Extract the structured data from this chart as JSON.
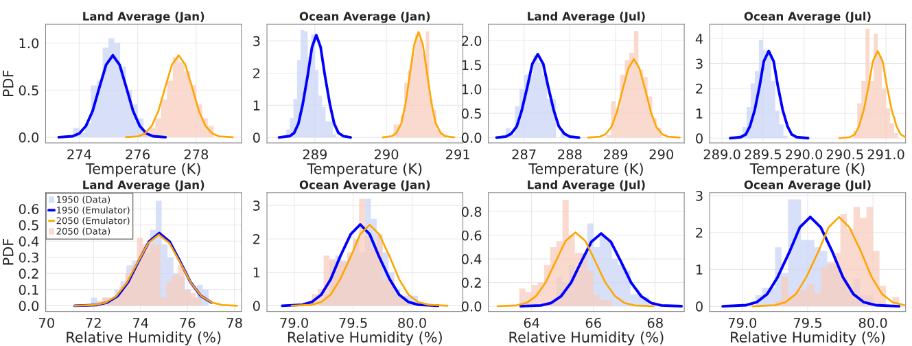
{
  "chart_data": [
    {
      "type": "histogram",
      "title": "Land Average (Jan)",
      "xlabel": "Temperature (K)",
      "ylabel": "PDF",
      "xlim": [
        272.85,
        279.55
      ],
      "xticks": [
        274,
        276,
        278
      ],
      "ylim": [
        -0.06,
        1.2
      ],
      "yticks": [
        {
          "value": 0,
          "label": "0.0"
        },
        {
          "value": 0.5,
          "label": "0.5"
        },
        {
          "value": 1,
          "label": "1.0"
        }
      ],
      "grid": true,
      "series": [
        {
          "type": "histogram",
          "color": "#c9d6f5",
          "bins": [
            273.8,
            274.0,
            274.2,
            274.4,
            274.6,
            274.8,
            275.0,
            275.2,
            275.4,
            275.6,
            275.8,
            276.0,
            276.2,
            276.4
          ],
          "values": [
            0.1,
            0.05,
            0.15,
            0.55,
            0.6,
            0.95,
            1.05,
            1.0,
            0.75,
            0.5,
            0.35,
            0.2,
            0.05
          ]
        },
        {
          "type": "line",
          "color": "#0000ff",
          "x": [
            273.3,
            273.77,
            274.0,
            274.23,
            274.46,
            274.69,
            274.92,
            275.15,
            275.38,
            275.61,
            275.84,
            276.07,
            276.3,
            276.53,
            276.95
          ],
          "values": [
            0,
            0.01,
            0.04,
            0.12,
            0.28,
            0.53,
            0.77,
            0.87,
            0.77,
            0.53,
            0.28,
            0.12,
            0.04,
            0.01,
            0
          ]
        },
        {
          "type": "line",
          "color": "#ffa500",
          "x": [
            275.6,
            276.02,
            276.25,
            276.48,
            276.71,
            276.94,
            277.17,
            277.4,
            277.63,
            277.86,
            278.09,
            278.32,
            278.55,
            278.78,
            279.25
          ],
          "values": [
            0,
            0.01,
            0.04,
            0.12,
            0.28,
            0.53,
            0.77,
            0.87,
            0.77,
            0.53,
            0.28,
            0.12,
            0.04,
            0.01,
            0
          ]
        },
        {
          "type": "histogram",
          "color": "#f8cdbd",
          "bins": [
            276.2,
            276.4,
            276.6,
            276.8,
            277.0,
            277.2,
            277.4,
            277.6,
            277.8,
            278.0,
            278.2,
            278.4,
            278.6
          ],
          "values": [
            0.05,
            0.1,
            0.2,
            0.4,
            0.6,
            0.85,
            0.8,
            0.7,
            0.55,
            0.35,
            0.2,
            0.12
          ]
        }
      ]
    },
    {
      "type": "histogram",
      "title": "Ocean Average (Jan)",
      "xlabel": "Temperature (K)",
      "xlim": [
        288.33,
        291.07
      ],
      "xticks": [
        289,
        290,
        291
      ],
      "ylim": [
        -0.17,
        3.52
      ],
      "yticks": [
        0,
        1,
        2,
        3
      ],
      "grid": true,
      "series": [
        {
          "type": "histogram",
          "color": "#c9d6f5",
          "bins": [
            288.6,
            288.65,
            288.7,
            288.75,
            288.8,
            288.85,
            288.9,
            288.95,
            289.0,
            289.05,
            289.1,
            289.15,
            289.2,
            289.25,
            289.3
          ],
          "values": [
            0.25,
            0.6,
            1.2,
            2.4,
            3.35,
            3.3,
            2.5,
            3.2,
            2.1,
            1.3,
            0.95,
            0.5,
            0.5,
            0.1
          ]
        },
        {
          "type": "line",
          "color": "#0000ff",
          "x": [
            288.5,
            288.65,
            288.71,
            288.77,
            288.83,
            288.9,
            288.96,
            289.02,
            289.08,
            289.14,
            289.21,
            289.27,
            289.33,
            289.4,
            289.5
          ],
          "values": [
            0,
            0.04,
            0.14,
            0.43,
            1.03,
            1.93,
            2.81,
            3.18,
            2.81,
            1.93,
            1.03,
            0.43,
            0.14,
            0.04,
            0
          ]
        },
        {
          "type": "line",
          "color": "#ffa500",
          "x": [
            289.95,
            290.08,
            290.14,
            290.21,
            290.27,
            290.33,
            290.39,
            290.45,
            290.51,
            290.57,
            290.63,
            290.69,
            290.76,
            290.82,
            290.95
          ],
          "values": [
            0,
            0.04,
            0.14,
            0.44,
            1.07,
            1.99,
            2.89,
            3.28,
            2.89,
            1.99,
            1.07,
            0.44,
            0.14,
            0.04,
            0
          ]
        },
        {
          "type": "histogram",
          "color": "#f8cdbd",
          "bins": [
            290.1,
            290.15,
            290.2,
            290.25,
            290.3,
            290.35,
            290.4,
            290.45,
            290.5,
            290.55,
            290.6,
            290.65,
            290.7,
            290.75,
            290.8,
            290.85
          ],
          "values": [
            0.4,
            0.4,
            0.7,
            1.7,
            2.1,
            2.6,
            3.2,
            3.05,
            2.6,
            3.3,
            1.2,
            0.85,
            0.25,
            0.15,
            0.1
          ]
        }
      ]
    },
    {
      "type": "histogram",
      "title": "Land Average (Jul)",
      "xlabel": "Temperature (K)",
      "xlim": [
        286.22,
        290.5
      ],
      "xticks": [
        287,
        288,
        289,
        290
      ],
      "ylim": [
        -0.11,
        2.34
      ],
      "yticks": [
        {
          "value": 0,
          "label": "0.0"
        },
        {
          "value": 0.5,
          "label": "0.5"
        },
        {
          "value": 1,
          "label": "1.0"
        },
        {
          "value": 1.5,
          "label": "1.5"
        },
        {
          "value": 2,
          "label": "2.0"
        }
      ],
      "grid": true,
      "series": [
        {
          "type": "histogram",
          "color": "#c9d6f5",
          "bins": [
            286.6,
            286.7,
            286.8,
            286.9,
            287.0,
            287.1,
            287.2,
            287.3,
            287.4,
            287.5,
            287.6,
            287.7,
            287.8,
            287.9,
            288.0
          ],
          "values": [
            0.2,
            0.05,
            0.65,
            1.0,
            1.3,
            1.3,
            1.7,
            1.55,
            1.3,
            0.8,
            0.8,
            0.0,
            0.1,
            0.0
          ]
        },
        {
          "type": "line",
          "color": "#0000ff",
          "x": [
            286.4,
            286.6,
            286.72,
            286.84,
            286.95,
            287.07,
            287.18,
            287.3,
            287.42,
            287.53,
            287.65,
            287.76,
            287.88,
            288.0,
            288.2
          ],
          "values": [
            0,
            0.02,
            0.08,
            0.23,
            0.56,
            1.04,
            1.52,
            1.72,
            1.52,
            1.04,
            0.56,
            0.23,
            0.08,
            0.02,
            0
          ]
        },
        {
          "type": "line",
          "color": "#ffa500",
          "x": [
            288.4,
            288.66,
            288.78,
            288.91,
            289.03,
            289.15,
            289.28,
            289.4,
            289.52,
            289.65,
            289.77,
            289.89,
            290.02,
            290.14,
            290.4
          ],
          "values": [
            0,
            0.02,
            0.07,
            0.22,
            0.53,
            0.98,
            1.43,
            1.62,
            1.43,
            0.98,
            0.53,
            0.22,
            0.07,
            0.02,
            0
          ]
        },
        {
          "type": "histogram",
          "color": "#f8cdbd",
          "bins": [
            288.8,
            288.9,
            289.0,
            289.1,
            289.2,
            289.3,
            289.4,
            289.5,
            289.6,
            289.7,
            289.8,
            289.9,
            290.0
          ],
          "values": [
            0.05,
            0.75,
            0.6,
            1.3,
            1.6,
            1.75,
            2.2,
            1.4,
            1.25,
            0.85,
            0.4,
            0.2
          ]
        }
      ]
    },
    {
      "type": "histogram",
      "title": "Ocean Average (Jul)",
      "xlabel": "Temperature (K)",
      "xlim": [
        288.85,
        291.24
      ],
      "xticks": [
        {
          "value": 289,
          "label": "289.0"
        },
        {
          "value": 289.5,
          "label": "289.5"
        },
        {
          "value": 290,
          "label": "290.0"
        },
        {
          "value": 290.5,
          "label": "290.5"
        },
        {
          "value": 291,
          "label": "291.0"
        }
      ],
      "ylim": [
        -0.19,
        4.58
      ],
      "yticks": [
        0,
        1,
        2,
        3,
        4
      ],
      "grid": true,
      "series": [
        {
          "type": "histogram",
          "color": "#c9d6f5",
          "bins": [
            289.2,
            289.25,
            289.3,
            289.35,
            289.4,
            289.45,
            289.5,
            289.55,
            289.6,
            289.65,
            289.7,
            289.75,
            289.8
          ],
          "values": [
            0.15,
            0.45,
            1.25,
            2.2,
            2.7,
            3.95,
            3.55,
            3.5,
            2.3,
            1.1,
            0.55,
            0.1
          ]
        },
        {
          "type": "line",
          "color": "#0000ff",
          "x": [
            289.1,
            289.23,
            289.29,
            289.34,
            289.4,
            289.46,
            289.51,
            289.57,
            289.63,
            289.68,
            289.74,
            289.8,
            289.85,
            289.91,
            290.05
          ],
          "values": [
            0,
            0.04,
            0.15,
            0.47,
            1.14,
            2.12,
            3.09,
            3.5,
            3.09,
            2.12,
            1.14,
            0.47,
            0.15,
            0.04,
            0
          ]
        },
        {
          "type": "line",
          "color": "#ffa500",
          "x": [
            290.43,
            290.56,
            290.62,
            290.67,
            290.73,
            290.79,
            290.84,
            290.9,
            290.96,
            291.01,
            291.07,
            291.13,
            291.18,
            291.24
          ],
          "values": [
            0,
            0.04,
            0.15,
            0.47,
            1.14,
            2.12,
            3.09,
            3.5,
            3.09,
            2.12,
            1.14,
            0.47,
            0.15,
            0.04
          ]
        },
        {
          "type": "histogram",
          "color": "#f8cdbd",
          "bins": [
            290.6,
            290.65,
            290.7,
            290.75,
            290.8,
            290.85,
            290.9,
            290.95,
            291.0,
            291.05,
            291.1,
            291.15
          ],
          "values": [
            0.3,
            1.4,
            2.3,
            4.4,
            2.3,
            4.2,
            3.3,
            2.0,
            1.2,
            0.6,
            0.2
          ]
        }
      ]
    },
    {
      "type": "histogram",
      "title": "Land Average (Jan)",
      "xlabel": "Relative Humidity (%)",
      "ylabel": "PDF",
      "xlim": [
        69.96,
        78.3
      ],
      "xticks": [
        70,
        72,
        74,
        76,
        78
      ],
      "ylim": [
        -0.035,
        0.7
      ],
      "yticks": [
        {
          "value": 0,
          "label": "0.0"
        },
        {
          "value": 0.1,
          "label": "0.1"
        },
        {
          "value": 0.2,
          "label": "0.2"
        },
        {
          "value": 0.3,
          "label": "0.3"
        },
        {
          "value": 0.4,
          "label": "0.4"
        },
        {
          "value": 0.5,
          "label": "0.5"
        },
        {
          "value": 0.6,
          "label": "0.6"
        }
      ],
      "grid": true,
      "legend": "top left",
      "series": [
        {
          "type": "histogram",
          "name": "1950 (Data)",
          "color": "#c9d6f5",
          "bins": [
            71.9,
            72.15,
            72.4,
            72.65,
            72.9,
            73.15,
            73.4,
            73.65,
            73.9,
            74.15,
            74.4,
            74.65,
            74.9,
            75.15,
            75.4,
            75.65,
            75.9,
            76.15,
            76.4,
            76.65,
            76.9
          ],
          "values": [
            0.05,
            0.02,
            0.05,
            0.05,
            0.1,
            0.15,
            0.25,
            0.28,
            0.3,
            0.33,
            0.47,
            0.65,
            0.38,
            0.3,
            0.2,
            0.18,
            0.1,
            0.05,
            0.13,
            0.1
          ]
        },
        {
          "type": "line",
          "name": "1950 (Emulator)",
          "color": "#0000ff",
          "x": [
            71.2,
            72.14,
            72.58,
            73.03,
            73.47,
            73.91,
            74.36,
            74.8,
            75.24,
            75.69,
            76.13,
            76.57,
            77.02
          ],
          "values": [
            0,
            0.005,
            0.02,
            0.061,
            0.146,
            0.273,
            0.397,
            0.45,
            0.397,
            0.273,
            0.146,
            0.061,
            0.02
          ]
        },
        {
          "type": "line",
          "name": "2050 (Emulator)",
          "color": "#ffa500",
          "x": [
            71.2,
            72.06,
            72.51,
            72.97,
            73.42,
            73.87,
            74.33,
            74.78,
            75.23,
            75.69,
            76.14,
            76.59,
            77.05,
            77.5,
            78.1
          ],
          "values": [
            0,
            0.005,
            0.019,
            0.06,
            0.143,
            0.267,
            0.388,
            0.44,
            0.388,
            0.267,
            0.143,
            0.06,
            0.019,
            0.005,
            0
          ]
        },
        {
          "type": "histogram",
          "name": "2050 (Data)",
          "color": "#f8cdbd",
          "bins": [
            72.1,
            72.35,
            72.6,
            72.85,
            73.1,
            73.35,
            73.6,
            73.85,
            74.1,
            74.35,
            74.6,
            74.85,
            75.1,
            75.35,
            75.6,
            75.85,
            76.1,
            76.35,
            76.6
          ],
          "values": [
            0.03,
            0.05,
            0.04,
            0.05,
            0.12,
            0.2,
            0.25,
            0.42,
            0.38,
            0.38,
            0.38,
            0.05,
            0.15,
            0.19,
            0.25,
            0.1,
            0.08,
            0.05
          ]
        }
      ]
    },
    {
      "type": "histogram",
      "title": "Ocean Average (Jan)",
      "xlabel": "Relative Humidity (%)",
      "xlim": [
        78.77,
        80.43
      ],
      "xticks": [
        {
          "value": 79,
          "label": "79.0"
        },
        {
          "value": 79.5,
          "label": "79.5"
        },
        {
          "value": 80,
          "label": "80.0"
        }
      ],
      "ylim": [
        -0.17,
        3.38
      ],
      "yticks": [
        0,
        1,
        2,
        3
      ],
      "grid": true,
      "series": [
        {
          "type": "histogram",
          "color": "#c9d6f5",
          "bins": [
            79.2,
            79.25,
            79.3,
            79.35,
            79.4,
            79.45,
            79.5,
            79.55,
            79.6,
            79.65,
            79.7,
            79.75,
            79.8,
            79.85,
            79.9,
            79.95,
            80.0,
            80.05
          ],
          "values": [
            0.15,
            0.35,
            1.35,
            1.5,
            1.35,
            1.5,
            1.95,
            1.6,
            3.2,
            2.6,
            2.1,
            1.6,
            1.0,
            0.5,
            0.3,
            0.3,
            0.3
          ]
        },
        {
          "type": "line",
          "color": "#0000ff",
          "x": [
            78.9,
            79.07,
            79.15,
            79.23,
            79.31,
            79.39,
            79.48,
            79.56,
            79.64,
            79.72,
            79.81,
            79.89,
            79.97,
            80.05,
            80.22
          ],
          "values": [
            0,
            0.03,
            0.11,
            0.33,
            0.79,
            1.47,
            2.14,
            2.43,
            2.14,
            1.47,
            0.79,
            0.33,
            0.11,
            0.03,
            0
          ]
        },
        {
          "type": "line",
          "color": "#ffa500",
          "x": [
            78.98,
            79.15,
            79.23,
            79.31,
            79.39,
            79.48,
            79.56,
            79.64,
            79.72,
            79.81,
            79.89,
            79.97,
            80.05,
            80.14,
            80.3
          ],
          "values": [
            0,
            0.03,
            0.11,
            0.33,
            0.79,
            1.47,
            2.14,
            2.42,
            2.14,
            1.47,
            0.79,
            0.33,
            0.11,
            0.03,
            0
          ]
        },
        {
          "type": "histogram",
          "color": "#f8cdbd",
          "bins": [
            79.15,
            79.2,
            79.25,
            79.3,
            79.35,
            79.4,
            79.45,
            79.5,
            79.55,
            79.6,
            79.65,
            79.7,
            79.75,
            79.8,
            79.85,
            79.9,
            79.95,
            80.0
          ],
          "values": [
            0.35,
            0.5,
            1.5,
            1.4,
            1.3,
            1.3,
            1.6,
            2.0,
            3.2,
            2.1,
            1.7,
            2.15,
            0.8,
            0.8,
            0.35,
            0.25,
            0.1
          ]
        }
      ]
    },
    {
      "type": "histogram",
      "title": "Land Average (Jul)",
      "xlabel": "Relative Humidity (%)",
      "xlim": [
        62.6,
        68.94
      ],
      "xticks": [
        64,
        66,
        68
      ],
      "ylim": [
        -0.044,
        0.96
      ],
      "yticks": [
        {
          "value": 0,
          "label": "0.0"
        },
        {
          "value": 0.2,
          "label": "0.2"
        },
        {
          "value": 0.4,
          "label": "0.4"
        },
        {
          "value": 0.6,
          "label": "0.6"
        },
        {
          "value": 0.8,
          "label": "0.8"
        }
      ],
      "grid": true,
      "series": [
        {
          "type": "histogram",
          "color": "#c9d6f5",
          "bins": [
            64.6,
            64.8,
            65.0,
            65.2,
            65.4,
            65.6,
            65.8,
            66.0,
            66.2,
            66.4,
            66.6,
            66.8,
            67.0,
            67.2,
            67.4,
            67.6,
            67.8
          ],
          "values": [
            0.05,
            0.25,
            0.2,
            0.35,
            0.3,
            0.45,
            0.7,
            0.5,
            0.6,
            0.55,
            0.4,
            0.35,
            0.3,
            0.1,
            0.1,
            0.08
          ]
        },
        {
          "type": "line",
          "color": "#0000ff",
          "x": [
            63.65,
            64.3,
            64.63,
            64.95,
            65.28,
            65.6,
            65.93,
            66.25,
            66.57,
            66.9,
            67.22,
            67.55,
            67.87,
            68.2,
            68.85
          ],
          "values": [
            0,
            0.007,
            0.027,
            0.083,
            0.2,
            0.373,
            0.543,
            0.615,
            0.543,
            0.373,
            0.2,
            0.083,
            0.027,
            0.007,
            0
          ]
        },
        {
          "type": "line",
          "color": "#ffa500",
          "x": [
            62.9,
            63.51,
            63.83,
            64.14,
            64.46,
            64.78,
            65.1,
            65.42,
            65.74,
            66.06,
            66.38,
            66.7,
            67.01,
            67.33,
            67.95
          ],
          "values": [
            0,
            0.007,
            0.027,
            0.085,
            0.203,
            0.379,
            0.552,
            0.625,
            0.552,
            0.379,
            0.203,
            0.085,
            0.027,
            0.007,
            0
          ]
        },
        {
          "type": "histogram",
          "color": "#f8cdbd",
          "bins": [
            63.6,
            63.8,
            64.0,
            64.2,
            64.4,
            64.6,
            64.8,
            65.0,
            65.2,
            65.4,
            65.6,
            65.8,
            66.0,
            66.2,
            66.4,
            66.6
          ],
          "values": [
            0.15,
            0.12,
            0.18,
            0.2,
            0.35,
            0.5,
            0.55,
            0.9,
            0.6,
            0.45,
            0.45,
            0.3,
            0.1,
            0.05,
            0.05
          ]
        }
      ]
    },
    {
      "type": "histogram",
      "title": "Ocean Average (Jul)",
      "xlabel": "Relative Humidity (%)",
      "xlim": [
        78.75,
        80.25
      ],
      "xticks": [
        {
          "value": 79,
          "label": "79.0"
        },
        {
          "value": 79.5,
          "label": "79.5"
        },
        {
          "value": 80,
          "label": "80.0"
        }
      ],
      "ylim": [
        -0.14,
        3.08
      ],
      "yticks": [
        0,
        1,
        2,
        3
      ],
      "grid": true,
      "series": [
        {
          "type": "histogram",
          "color": "#c9d6f5",
          "bins": [
            79.1,
            79.15,
            79.2,
            79.25,
            79.3,
            79.35,
            79.4,
            79.45,
            79.5,
            79.55,
            79.6,
            79.65,
            79.7,
            79.75,
            79.8,
            79.85,
            79.9,
            79.95,
            80.0
          ],
          "values": [
            0.3,
            0.5,
            0.5,
            1.6,
            0.9,
            2.9,
            2.9,
            1.8,
            1.8,
            1.6,
            1.5,
            1.15,
            1.1,
            0.8,
            0.4,
            0.75,
            0.3,
            0.3
          ]
        },
        {
          "type": "line",
          "color": "#0000ff",
          "x": [
            78.85,
            79.03,
            79.11,
            79.19,
            79.27,
            79.36,
            79.44,
            79.52,
            79.6,
            79.69,
            79.77,
            79.85,
            79.93,
            80.02,
            80.2
          ],
          "values": [
            0,
            0.03,
            0.11,
            0.33,
            0.79,
            1.47,
            2.14,
            2.42,
            2.14,
            1.47,
            0.79,
            0.33,
            0.11,
            0.03,
            0
          ]
        },
        {
          "type": "line",
          "color": "#ffa500",
          "x": [
            79.08,
            79.25,
            79.33,
            79.41,
            79.49,
            79.58,
            79.66,
            79.74,
            79.82,
            79.91,
            79.99,
            80.07,
            80.15,
            80.24
          ],
          "values": [
            0,
            0.03,
            0.11,
            0.33,
            0.79,
            1.47,
            2.14,
            2.42,
            2.14,
            1.47,
            0.79,
            0.33,
            0.11,
            0.03
          ]
        },
        {
          "type": "histogram",
          "color": "#f8cdbd",
          "bins": [
            79.25,
            79.3,
            79.35,
            79.4,
            79.45,
            79.5,
            79.55,
            79.6,
            79.65,
            79.7,
            79.75,
            79.8,
            79.85,
            79.9,
            79.95,
            80.0,
            80.05,
            80.1,
            80.15,
            80.2
          ],
          "values": [
            0.15,
            0.8,
            0.3,
            0.45,
            0.45,
            0.6,
            0.35,
            1.05,
            1.2,
            1.45,
            2.5,
            2.1,
            2.7,
            2.4,
            2.7,
            1.5,
            0.55,
            0.0,
            0.25
          ]
        }
      ]
    }
  ]
}
